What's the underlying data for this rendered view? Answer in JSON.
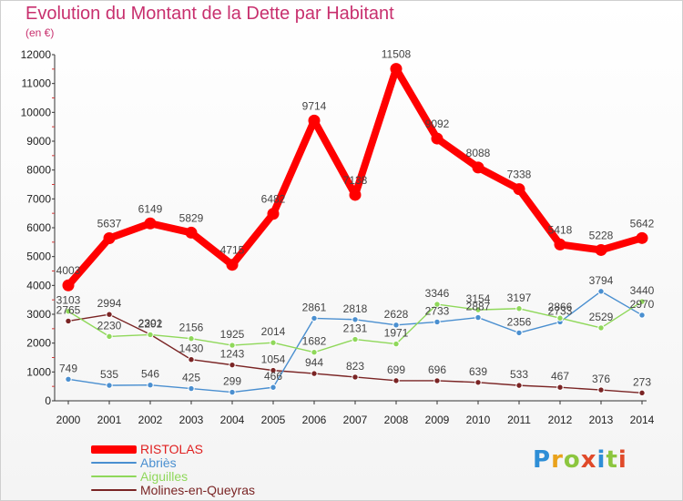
{
  "header": {
    "title": "Evolution du Montant de la Dette par Habitant",
    "subtitle": "(en €)"
  },
  "logo": {
    "text": "Proxiti",
    "colors": [
      "#2e8ed6",
      "#e9a21c",
      "#8cc63f",
      "#e04a2a",
      "#2e8ed6",
      "#8cc63f",
      "#e04a2a"
    ]
  },
  "chart_data": {
    "type": "line",
    "title": "Evolution du Montant de la Dette par Habitant",
    "ylabel": "(en €)",
    "xlabel": "",
    "x": [
      "2000",
      "2001",
      "2002",
      "2003",
      "2004",
      "2005",
      "2006",
      "2007",
      "2008",
      "2009",
      "2010",
      "2011",
      "2012",
      "2013",
      "2014"
    ],
    "ylim": [
      0,
      12000
    ],
    "yticks": [
      0,
      1000,
      2000,
      3000,
      4000,
      5000,
      6000,
      7000,
      8000,
      9000,
      10000,
      11000,
      12000
    ],
    "grid": false,
    "legend_position": "bottom-left",
    "series": [
      {
        "name": "RISTOLAS",
        "color": "#ff0000",
        "values": [
          4003,
          5637,
          6149,
          5829,
          4715,
          6482,
          9714,
          7138,
          11508,
          9092,
          8088,
          7338,
          5418,
          5228,
          5642
        ]
      },
      {
        "name": "Abriès",
        "color": "#4a8fd0",
        "values": [
          749,
          535,
          546,
          425,
          299,
          466,
          2861,
          2818,
          2628,
          2733,
          2887,
          2356,
          2733,
          3794,
          2970
        ]
      },
      {
        "name": "Aiguilles",
        "color": "#8fd85a",
        "values": [
          3103,
          2230,
          2292,
          2156,
          1925,
          2014,
          1682,
          2131,
          1971,
          3346,
          3154,
          3197,
          2866,
          2529,
          3440
        ]
      },
      {
        "name": "Molines-en-Queyras",
        "color": "#7a2424",
        "values": [
          2765,
          2994,
          2301,
          1430,
          1243,
          1054,
          944,
          823,
          699,
          696,
          639,
          533,
          467,
          376,
          273
        ]
      }
    ]
  }
}
